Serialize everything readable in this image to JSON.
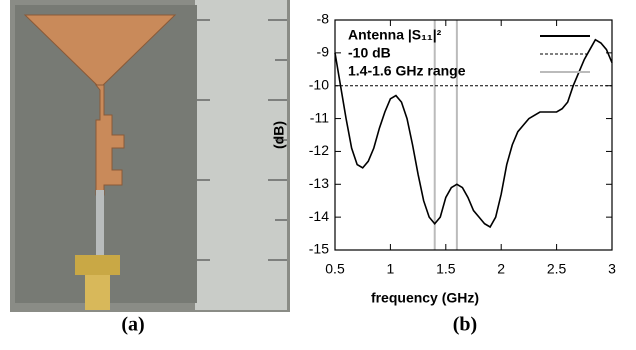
{
  "panel_labels": [
    "(a)",
    "(b)"
  ],
  "chart_data": {
    "type": "line",
    "xlabel": "frequency (GHz)",
    "ylabel": "(dB)",
    "xlim": [
      0.5,
      3
    ],
    "ylim": [
      -15,
      -8
    ],
    "xticks": [
      0.5,
      1,
      1.5,
      2,
      2.5,
      3
    ],
    "yticks": [
      -15,
      -14,
      -13,
      -12,
      -11,
      -10,
      -9,
      -8
    ],
    "legend": "upper left",
    "x": [
      0.5,
      0.55,
      0.6,
      0.65,
      0.7,
      0.75,
      0.8,
      0.85,
      0.9,
      0.95,
      1.0,
      1.05,
      1.1,
      1.15,
      1.2,
      1.25,
      1.3,
      1.35,
      1.4,
      1.45,
      1.5,
      1.55,
      1.6,
      1.65,
      1.7,
      1.75,
      1.8,
      1.85,
      1.9,
      1.95,
      2.0,
      2.05,
      2.1,
      2.15,
      2.2,
      2.25,
      2.3,
      2.35,
      2.4,
      2.45,
      2.5,
      2.55,
      2.6,
      2.65,
      2.7,
      2.75,
      2.8,
      2.85,
      2.9,
      2.95,
      3.0
    ],
    "series": [
      {
        "name": "Antenna |S₁₁|²",
        "color": "#000000",
        "values": [
          -9.0,
          -10.0,
          -11.0,
          -11.9,
          -12.4,
          -12.5,
          -12.3,
          -11.9,
          -11.3,
          -10.8,
          -10.4,
          -10.3,
          -10.5,
          -11.0,
          -11.8,
          -12.7,
          -13.5,
          -14.0,
          -14.2,
          -14.0,
          -13.4,
          -13.1,
          -13.0,
          -13.1,
          -13.4,
          -13.8,
          -14.0,
          -14.2,
          -14.3,
          -14.0,
          -13.3,
          -12.4,
          -11.8,
          -11.4,
          -11.2,
          -11.0,
          -10.9,
          -10.8,
          -10.8,
          -10.8,
          -10.8,
          -10.7,
          -10.5,
          -10.0,
          -9.6,
          -9.2,
          -8.9,
          -8.6,
          -8.7,
          -8.9,
          -9.3
        ]
      }
    ],
    "hline": {
      "name": "-10 dB",
      "value": -10,
      "color": "#000000"
    },
    "vlines": {
      "name": "1.4-1.6 GHz range",
      "values": [
        1.4,
        1.6
      ],
      "color": "#bbbbbb"
    }
  }
}
